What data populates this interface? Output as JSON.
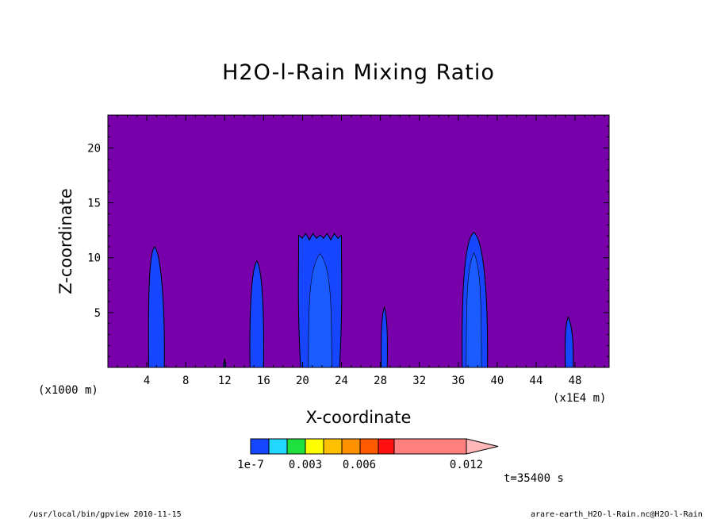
{
  "chart_data": {
    "type": "contour",
    "title": "H2O-l-Rain Mixing Ratio",
    "xlabel": "X-coordinate",
    "ylabel": "Z-coordinate",
    "x_unit_left": "(x1000 m)",
    "x_unit_right": "(x1E4 m)",
    "xlim": [
      0,
      51.5
    ],
    "ylim": [
      0,
      23
    ],
    "x_ticks": [
      4,
      8,
      12,
      16,
      20,
      24,
      28,
      32,
      36,
      40,
      44,
      48
    ],
    "y_ticks": [
      5,
      10,
      15,
      20
    ],
    "background_color": "#7700aa",
    "contour_fill_color": "#1646ff",
    "contour_inner_color": "#1a5cff",
    "features": [
      {
        "name": "cell-x5",
        "x_center": 4.8,
        "top_z": 11.0,
        "base_left": 4.2,
        "base_right": 5.8
      },
      {
        "name": "cell-x12",
        "x_center": 12.0,
        "top_z": 0.8,
        "base_left": 11.9,
        "base_right": 12.1
      },
      {
        "name": "cell-x15",
        "x_center": 15.3,
        "top_z": 9.7,
        "base_left": 14.6,
        "base_right": 16.0
      },
      {
        "name": "cell-x22",
        "x_center": 21.8,
        "top_z": 12.2,
        "base_left": 19.8,
        "base_right": 23.8
      },
      {
        "name": "cell-x28",
        "x_center": 28.4,
        "top_z": 5.5,
        "base_left": 28.1,
        "base_right": 28.7
      },
      {
        "name": "cell-x38",
        "x_center": 37.6,
        "top_z": 12.3,
        "base_left": 36.4,
        "base_right": 39.0
      },
      {
        "name": "cell-x47",
        "x_center": 47.3,
        "top_z": 4.6,
        "base_left": 47.0,
        "base_right": 47.8
      }
    ],
    "colorbar": {
      "colors": [
        "#1646ff",
        "#22d8ff",
        "#20e040",
        "#ffff00",
        "#ffc000",
        "#ff9000",
        "#ff5a00",
        "#ff1010",
        "#ff7f7f",
        "#ffb7b7"
      ],
      "labels": [
        "1e-7",
        "0.003",
        "0.006",
        "0.012"
      ]
    }
  },
  "annotations": {
    "time": "t=35400 s",
    "footer_left": "/usr/local/bin/gpview  2010-11-15",
    "footer_right": "arare-earth_H2O-l-Rain.nc@H2O-l-Rain"
  }
}
